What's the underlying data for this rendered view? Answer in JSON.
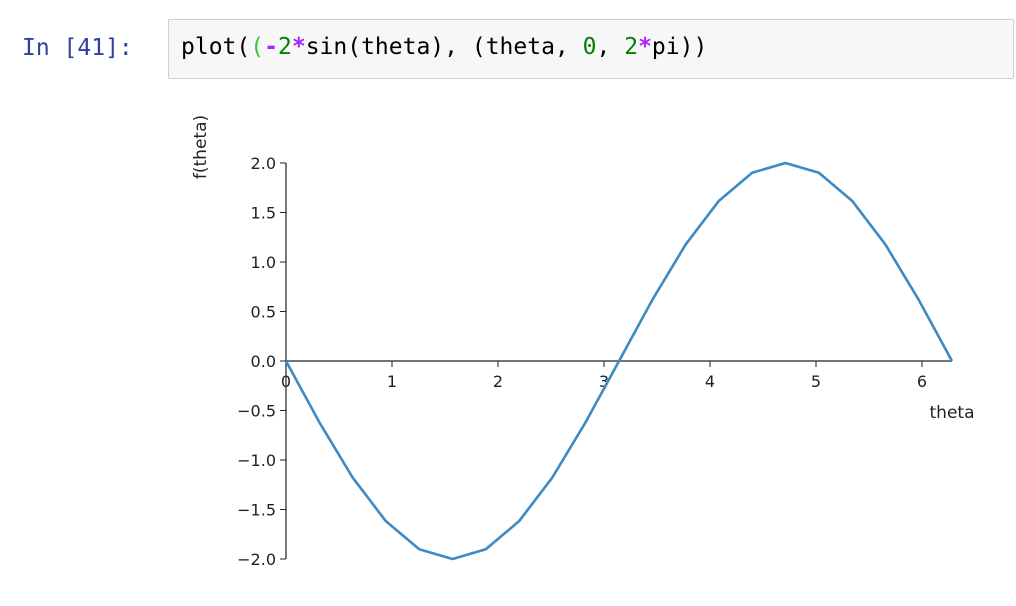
{
  "cell": {
    "prompt": "In [41]:",
    "code": {
      "fn": "plot(",
      "open_paren": "(",
      "minus": "-",
      "two": "2",
      "star": "*",
      "sin_call": "sin(theta), (theta, ",
      "zero": "0",
      "sep": ", ",
      "two2": "2",
      "star2": "*",
      "pi": "pi))"
    }
  },
  "chart_data": {
    "type": "line",
    "xlabel": "theta",
    "ylabel": "f(theta)",
    "xlim": [
      0,
      6.283
    ],
    "ylim": [
      -2.0,
      2.0
    ],
    "x_ticks": [
      0,
      1,
      2,
      3,
      4,
      5,
      6
    ],
    "x_tick_labels": [
      "0",
      "1",
      "2",
      "3",
      "4",
      "5",
      "6"
    ],
    "y_ticks": [
      2.0,
      1.5,
      1.0,
      0.5,
      0.0,
      -0.5,
      -1.0,
      -1.5,
      -2.0
    ],
    "y_tick_labels": [
      "2.0",
      "1.5",
      "1.0",
      "0.5",
      "0.0",
      "−0.5",
      "−1.0",
      "−1.5",
      "−2.0"
    ],
    "grid": false,
    "spines": "centered",
    "color": "#3d8ac4",
    "series": [
      {
        "x": [
          0,
          0.314,
          0.628,
          0.942,
          1.257,
          1.571,
          1.885,
          2.199,
          2.513,
          2.827,
          3.142,
          3.456,
          3.77,
          4.084,
          4.398,
          4.712,
          5.027,
          5.341,
          5.655,
          5.969,
          6.283
        ],
        "y": [
          0,
          -0.618,
          -1.176,
          -1.618,
          -1.902,
          -2.0,
          -1.902,
          -1.618,
          -1.176,
          -0.618,
          0,
          0.618,
          1.176,
          1.618,
          1.902,
          2.0,
          1.902,
          1.618,
          1.176,
          0.618,
          0
        ]
      }
    ]
  }
}
